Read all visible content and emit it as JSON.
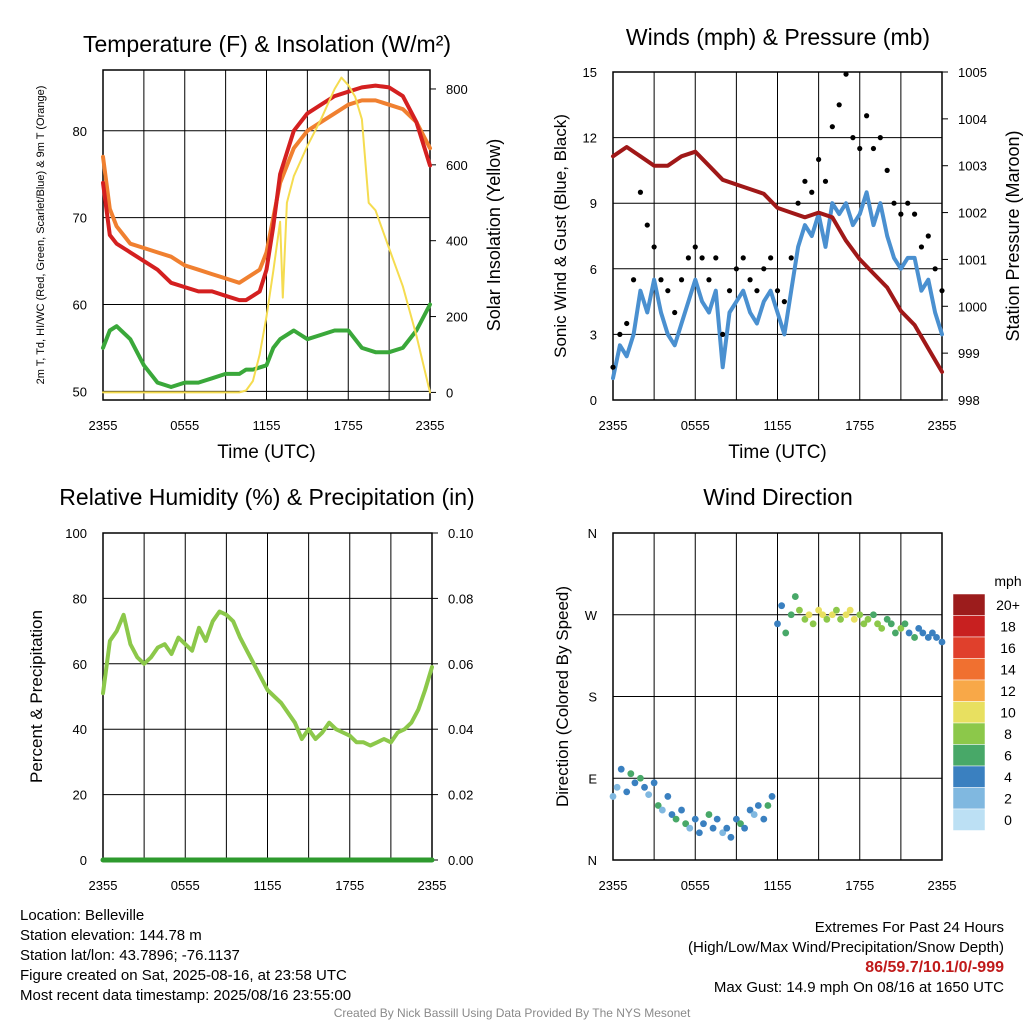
{
  "colors": {
    "red": "#d42020",
    "orange": "#f08030",
    "green": "#3aa83a",
    "yellow": "#f5dc50",
    "blue": "#4a90d0",
    "black": "#000000",
    "maroon": "#a01818",
    "rh_green": "#8cc84a",
    "precip_green": "#2e9a2e",
    "grid": "#000000"
  },
  "chart_data": [
    {
      "id": "temp",
      "type": "line",
      "title": "Temperature (F) & Insolation (W/m²)",
      "xlabel": "Time (UTC)",
      "ylabel": "2m T, Td, HI/WC (Red, Green, Scarlet/Blue) & 9m T (Orange)",
      "y2label": "Solar Insolation (Yellow)",
      "x_ticks": [
        "2355",
        "0555",
        "1155",
        "1755",
        "2355"
      ],
      "ylim": [
        49,
        87
      ],
      "y_ticks": [
        50,
        60,
        70,
        80
      ],
      "y2lim": [
        -20,
        850
      ],
      "y2_ticks": [
        0,
        200,
        400,
        600,
        800
      ],
      "x_range_hours": [
        0,
        24
      ],
      "series": [
        {
          "key": "t9m",
          "axis": "left",
          "color": "orange",
          "x": [
            0,
            0.5,
            1,
            2,
            3,
            4,
            5,
            6,
            7,
            8,
            9,
            10,
            10.5,
            11,
            11.5,
            12,
            12.5,
            13,
            14,
            15,
            16,
            17,
            18,
            19,
            20,
            21,
            22,
            23,
            24
          ],
          "y": [
            77,
            71,
            69,
            67,
            66.5,
            66,
            65.5,
            64.5,
            64,
            63.5,
            63,
            62.5,
            63,
            63.5,
            64,
            66,
            70,
            74,
            78,
            80,
            81,
            82,
            83,
            83.5,
            83.5,
            83,
            82.5,
            81,
            78
          ]
        },
        {
          "key": "t2m",
          "axis": "left",
          "color": "red",
          "x": [
            0,
            0.5,
            1,
            2,
            3,
            4,
            5,
            6,
            7,
            8,
            9,
            10,
            10.5,
            11,
            11.5,
            12,
            12.5,
            13,
            14,
            15,
            16,
            17,
            18,
            19,
            20,
            21,
            22,
            23,
            24
          ],
          "y": [
            74,
            68,
            67,
            66,
            65,
            64,
            62.5,
            62,
            61.5,
            61.5,
            61,
            60.5,
            60.5,
            61,
            61.5,
            64,
            69,
            75,
            80,
            82,
            83,
            84,
            84.5,
            85,
            85.2,
            85,
            84,
            81,
            76
          ]
        },
        {
          "key": "td",
          "axis": "left",
          "color": "green",
          "x": [
            0,
            0.5,
            1,
            2,
            3,
            4,
            5,
            6,
            7,
            8,
            9,
            10,
            10.5,
            11,
            12,
            12.5,
            13,
            14,
            15,
            16,
            17,
            18,
            19,
            20,
            21,
            22,
            23,
            24
          ],
          "y": [
            55,
            57,
            57.5,
            56,
            53,
            51,
            50.5,
            51,
            51,
            51.5,
            52,
            52,
            52.5,
            52.5,
            53,
            55,
            56,
            57,
            56,
            56.5,
            57,
            57,
            55,
            54.5,
            54.5,
            55,
            57,
            60
          ]
        },
        {
          "key": "solar",
          "axis": "right",
          "color": "yellow",
          "x": [
            0,
            1,
            2,
            3,
            4,
            5,
            6,
            7,
            8,
            9,
            10,
            10.5,
            11,
            11.5,
            12,
            12.5,
            13,
            13.2,
            13.5,
            14,
            15,
            16,
            17,
            17.5,
            18,
            18.5,
            19,
            19.5,
            20,
            21,
            22,
            23,
            24
          ],
          "y": [
            0,
            0,
            0,
            0,
            0,
            0,
            0,
            0,
            0,
            0,
            0,
            5,
            30,
            100,
            200,
            320,
            450,
            250,
            500,
            570,
            650,
            720,
            800,
            830,
            810,
            780,
            720,
            500,
            480,
            380,
            280,
            150,
            0
          ]
        }
      ]
    },
    {
      "id": "wind",
      "type": "line",
      "title": "Winds (mph) & Pressure (mb)",
      "xlabel": "Time (UTC)",
      "ylabel": "Sonic Wind & Gust (Blue, Black)",
      "y2label": "Station Pressure (Maroon)",
      "x_ticks": [
        "2355",
        "0555",
        "1155",
        "1755",
        "2355"
      ],
      "ylim": [
        0,
        15
      ],
      "y_ticks": [
        0,
        3,
        6,
        9,
        12,
        15
      ],
      "y2lim": [
        998,
        1005
      ],
      "y2_ticks": [
        998,
        999,
        1000,
        1001,
        1002,
        1003,
        1004,
        1005
      ],
      "x_range_hours": [
        0,
        24
      ],
      "series": [
        {
          "key": "wind",
          "axis": "left",
          "color": "blue",
          "type": "line",
          "x": [
            0,
            0.5,
            1,
            1.5,
            2,
            2.5,
            3,
            3.5,
            4,
            4.5,
            5,
            5.5,
            6,
            6.5,
            7,
            7.5,
            8,
            8.5,
            9,
            9.5,
            10,
            10.5,
            11,
            11.5,
            12,
            12.5,
            13,
            13.5,
            14,
            14.5,
            15,
            15.5,
            16,
            16.5,
            17,
            17.5,
            18,
            18.5,
            19,
            19.5,
            20,
            20.5,
            21,
            21.5,
            22,
            22.5,
            23,
            23.5,
            24
          ],
          "y": [
            1,
            2.5,
            2,
            3,
            5,
            4,
            5.5,
            4,
            3,
            2.5,
            3.5,
            4.5,
            5.5,
            4.5,
            4,
            5,
            1.5,
            4,
            4.5,
            5,
            4,
            3.5,
            4.5,
            5,
            4,
            3,
            5,
            7,
            8,
            7.5,
            8.5,
            7,
            9,
            8.5,
            9,
            8,
            8.5,
            9.5,
            8,
            9,
            7.5,
            6.5,
            6,
            6.5,
            6.5,
            5,
            5.5,
            4,
            3
          ]
        },
        {
          "key": "gust",
          "axis": "left",
          "color": "black",
          "type": "scatter",
          "x": [
            0,
            0.5,
            1,
            1.5,
            2,
            2.5,
            3,
            3.5,
            4,
            4.5,
            5,
            5.5,
            6,
            6.5,
            7,
            7.5,
            8,
            8.5,
            9,
            9.5,
            10,
            10.5,
            11,
            11.5,
            12,
            12.5,
            13,
            13.5,
            14,
            14.5,
            15,
            15.5,
            16,
            16.5,
            17,
            17.5,
            18,
            18.5,
            19,
            19.5,
            20,
            20.5,
            21,
            21.5,
            22,
            22.5,
            23,
            23.5,
            24
          ],
          "y": [
            1.5,
            3,
            3.5,
            5.5,
            9.5,
            8,
            7,
            5.5,
            5,
            4,
            5.5,
            6.5,
            7,
            6.5,
            5.5,
            6.5,
            3,
            5,
            6,
            6.5,
            5.5,
            5,
            6,
            6.5,
            5,
            4.5,
            6.5,
            9,
            10,
            9.5,
            11,
            10,
            12.5,
            13.5,
            14.9,
            12,
            11.5,
            13,
            11.5,
            12,
            10.5,
            9,
            8.5,
            9,
            8.5,
            7,
            7.5,
            6,
            5
          ]
        },
        {
          "key": "pressure",
          "axis": "right",
          "color": "maroon",
          "type": "line",
          "x": [
            0,
            1,
            2,
            3,
            4,
            5,
            6,
            7,
            8,
            9,
            10,
            11,
            12,
            13,
            14,
            15,
            16,
            17,
            18,
            19,
            20,
            21,
            22,
            23,
            24
          ],
          "y": [
            1003.2,
            1003.4,
            1003.2,
            1003.0,
            1003.0,
            1003.2,
            1003.3,
            1003.0,
            1002.7,
            1002.6,
            1002.5,
            1002.4,
            1002.1,
            1002.0,
            1001.9,
            1002.0,
            1001.9,
            1001.4,
            1001.0,
            1000.7,
            1000.4,
            999.9,
            999.6,
            999.1,
            998.6
          ]
        }
      ]
    },
    {
      "id": "rh",
      "type": "line",
      "title": "Relative Humidity (%) & Precipitation (in)",
      "xlabel": "",
      "ylabel": "Percent & Precipitation",
      "x_ticks": [
        "2355",
        "0555",
        "1155",
        "1755",
        "2355"
      ],
      "ylim": [
        0,
        100
      ],
      "y_ticks": [
        0,
        20,
        40,
        60,
        80,
        100
      ],
      "y2lim": [
        0,
        0.1
      ],
      "y2_ticks": [
        "0.00",
        "0.02",
        "0.04",
        "0.06",
        "0.08",
        "0.10"
      ],
      "x_range_hours": [
        0,
        24
      ],
      "series": [
        {
          "key": "rh",
          "axis": "left",
          "color": "rh_green",
          "x": [
            0,
            0.5,
            1,
            1.5,
            2,
            2.5,
            3,
            3.5,
            4,
            4.5,
            5,
            5.5,
            6,
            6.5,
            7,
            7.5,
            8,
            8.5,
            9,
            9.5,
            10,
            10.5,
            11,
            12,
            13,
            14,
            14.5,
            15,
            15.5,
            16,
            16.5,
            17,
            17.5,
            18,
            18.5,
            19,
            19.5,
            20,
            20.5,
            21,
            21.5,
            22,
            22.5,
            23,
            23.5,
            24
          ],
          "y": [
            51,
            67,
            70,
            75,
            66,
            62,
            60,
            62,
            65,
            66,
            63,
            68,
            66,
            64,
            71,
            67,
            73,
            76,
            75,
            73,
            68,
            64,
            60,
            52,
            48,
            42,
            37,
            40,
            37,
            39,
            42,
            40,
            39,
            38,
            36,
            36,
            35,
            36,
            37,
            36,
            39,
            40,
            42,
            46,
            52,
            59
          ]
        },
        {
          "key": "precip",
          "axis": "right",
          "color": "precip_green",
          "x": [
            0,
            24
          ],
          "y": [
            0,
            0
          ]
        }
      ]
    },
    {
      "id": "wdir",
      "type": "scatter",
      "title": "Wind Direction",
      "xlabel": "",
      "ylabel": "Direction (Colored By Speed)",
      "x_ticks": [
        "2355",
        "0555",
        "1155",
        "1755",
        "2355"
      ],
      "y_ticks": [
        "N",
        "E",
        "S",
        "W",
        "N"
      ],
      "ylim": [
        0,
        360
      ],
      "x_range_hours": [
        0,
        24
      ],
      "legend": {
        "title": "mph",
        "placement": "right",
        "labels": [
          "20+",
          "18",
          "16",
          "14",
          "12",
          "10",
          "8",
          "6",
          "4",
          "2",
          "0"
        ],
        "colors": [
          "#9c1c1c",
          "#c82020",
          "#e0402c",
          "#f07030",
          "#f8a848",
          "#e8e060",
          "#8cc84a",
          "#48a868",
          "#3a80c0",
          "#80b8e0",
          "#bce0f4"
        ]
      },
      "x": [
        0,
        0.3,
        0.6,
        1.0,
        1.3,
        1.6,
        2.0,
        2.3,
        2.6,
        3.0,
        3.3,
        3.6,
        4.0,
        4.3,
        4.6,
        5.0,
        5.3,
        5.6,
        6.0,
        6.3,
        6.6,
        7.0,
        7.3,
        7.6,
        8.0,
        8.3,
        8.6,
        9.0,
        9.3,
        9.6,
        10.0,
        10.3,
        10.6,
        11.0,
        11.3,
        11.6,
        12.0,
        12.3,
        12.6,
        13.0,
        13.3,
        13.6,
        14.0,
        14.3,
        14.6,
        15.0,
        15.3,
        15.6,
        16.0,
        16.3,
        16.6,
        17.0,
        17.3,
        17.6,
        18.0,
        18.3,
        18.6,
        19.0,
        19.3,
        19.6,
        20.0,
        20.3,
        20.6,
        21.0,
        21.3,
        21.6,
        22.0,
        22.3,
        22.6,
        23.0,
        23.3,
        23.6,
        24.0
      ],
      "y": [
        70,
        80,
        100,
        75,
        95,
        85,
        90,
        80,
        72,
        85,
        60,
        55,
        70,
        50,
        45,
        55,
        40,
        35,
        45,
        30,
        40,
        50,
        35,
        45,
        30,
        35,
        25,
        45,
        40,
        35,
        55,
        50,
        60,
        45,
        60,
        70,
        260,
        280,
        250,
        270,
        290,
        275,
        265,
        270,
        260,
        275,
        270,
        265,
        270,
        275,
        265,
        270,
        275,
        265,
        270,
        260,
        265,
        270,
        260,
        255,
        265,
        260,
        250,
        255,
        260,
        250,
        245,
        255,
        250,
        245,
        250,
        245,
        240
      ],
      "speeds": [
        2,
        2,
        3,
        4,
        5,
        4,
        6,
        3,
        2,
        4,
        5,
        2,
        3,
        4,
        5,
        4,
        6,
        2,
        3,
        4,
        3,
        5,
        4,
        3,
        2,
        4,
        3,
        4,
        5,
        3,
        4,
        2,
        3,
        4,
        5,
        3,
        3,
        4,
        6,
        5,
        6,
        7,
        8,
        9,
        8,
        10,
        9,
        8,
        9,
        7,
        8,
        9,
        10,
        9,
        8,
        7,
        8,
        6,
        8,
        7,
        6,
        5,
        6,
        7,
        5,
        4,
        5,
        4,
        3,
        4,
        3,
        4,
        3
      ]
    }
  ],
  "info_left": [
    "Location: Belleville",
    "Station elevation: 144.78 m",
    "Station lat/lon: 43.7896; -76.1137",
    "Figure created on Sat, 2025-08-16, at 23:58 UTC",
    "Most recent data timestamp: 2025/08/16 23:55:00"
  ],
  "info_right": {
    "line1": "Extremes For Past 24 Hours",
    "line2": "(High/Low/Max Wind/Precipitation/Snow Depth)",
    "extremes": "86/59.7/10.1/0/-999",
    "gust": "Max Gust: 14.9 mph On 08/16 at 1650 UTC"
  },
  "credit": "Created By Nick Bassill Using Data Provided By The NYS Mesonet"
}
